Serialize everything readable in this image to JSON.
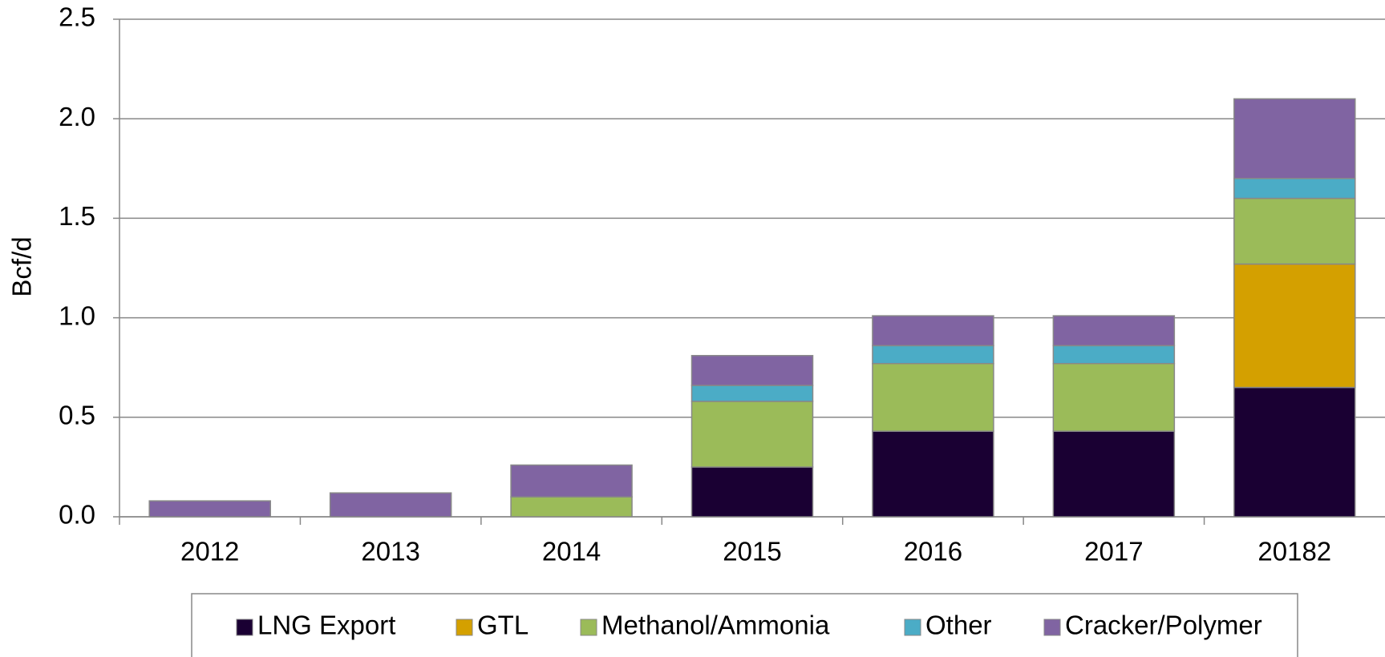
{
  "chart_data": {
    "type": "stacked_bar",
    "y_label": "Bcf/d",
    "categories": [
      "2012",
      "2013",
      "2014",
      "2015",
      "2016",
      "2017",
      "20182"
    ],
    "series": [
      {
        "name": "LNG Export",
        "color": "#1a0033",
        "values": [
          0,
          0,
          0,
          0.25,
          0.43,
          0.43,
          0.65
        ]
      },
      {
        "name": "GTL",
        "color": "#d4a000",
        "values": [
          0,
          0,
          0,
          0,
          0,
          0,
          0.62
        ]
      },
      {
        "name": "Methanol/Ammonia",
        "color": "#9bbb59",
        "values": [
          0,
          0,
          0.1,
          0.33,
          0.34,
          0.34,
          0.33
        ]
      },
      {
        "name": "Other",
        "color": "#4bacc6",
        "values": [
          0,
          0,
          0,
          0.08,
          0.09,
          0.09,
          0.1
        ]
      },
      {
        "name": "Cracker/Polymer",
        "color": "#8064a2",
        "values": [
          0.08,
          0.12,
          0.16,
          0.15,
          0.15,
          0.15,
          0.4
        ]
      }
    ],
    "ylim": [
      0,
      2.5
    ],
    "yticks": [
      {
        "value": 0,
        "label": "0.0"
      },
      0.5,
      {
        "value": 1,
        "label": "1.0"
      },
      1.5,
      {
        "value": 2,
        "label": "2.0"
      },
      2.5
    ],
    "grid": true
  }
}
